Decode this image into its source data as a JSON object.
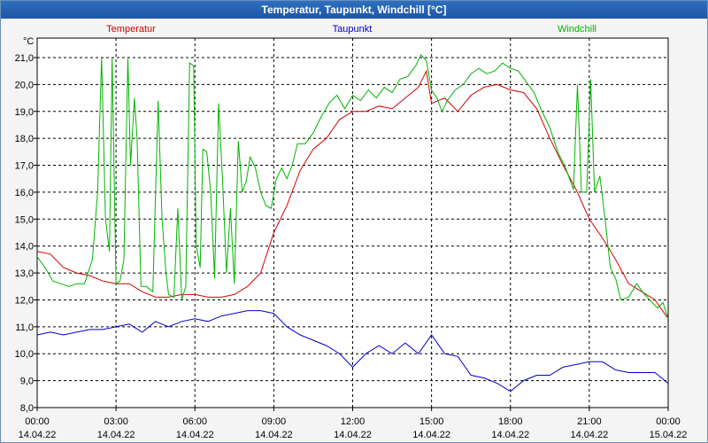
{
  "window": {
    "title": "Temperatur, Taupunkt, Windchill [°C]"
  },
  "chart_data": {
    "type": "line",
    "title": "Temperatur, Taupunkt, Windchill [°C]",
    "ylabel": "°C",
    "ylim": [
      8.0,
      21.5
    ],
    "yticks": [
      "21,0",
      "20,0",
      "19,0",
      "18,0",
      "17,0",
      "16,0",
      "15,0",
      "14,0",
      "13,0",
      "12,0",
      "11,0",
      "10,0",
      "9,0",
      "8,0"
    ],
    "ytick_values": [
      21,
      20,
      19,
      18,
      17,
      16,
      15,
      14,
      13,
      12,
      11,
      10,
      9,
      8
    ],
    "xlim": [
      0,
      24
    ],
    "xticks": [
      {
        "hour": 0,
        "time": "00:00",
        "date": "14.04.22"
      },
      {
        "hour": 3,
        "time": "03:00",
        "date": "14.04.22"
      },
      {
        "hour": 6,
        "time": "06:00",
        "date": "14.04.22"
      },
      {
        "hour": 9,
        "time": "09:00",
        "date": "14.04.22"
      },
      {
        "hour": 12,
        "time": "12:00",
        "date": "14.04.22"
      },
      {
        "hour": 15,
        "time": "15:00",
        "date": "14.04.22"
      },
      {
        "hour": 18,
        "time": "18:00",
        "date": "14.04.22"
      },
      {
        "hour": 21,
        "time": "21:00",
        "date": "14.04.22"
      },
      {
        "hour": 24,
        "time": "00:00",
        "date": "15.04.22"
      }
    ],
    "series": [
      {
        "name": "Temperatur",
        "color": "#d40000",
        "legend_pos": "left",
        "points": [
          [
            0,
            13.8
          ],
          [
            0.5,
            13.7
          ],
          [
            1,
            13.2
          ],
          [
            1.5,
            13.0
          ],
          [
            2,
            12.9
          ],
          [
            2.5,
            12.7
          ],
          [
            3,
            12.6
          ],
          [
            3.5,
            12.6
          ],
          [
            4,
            12.3
          ],
          [
            4.5,
            12.1
          ],
          [
            5,
            12.1
          ],
          [
            5.5,
            12.2
          ],
          [
            6,
            12.2
          ],
          [
            6.5,
            12.1
          ],
          [
            7,
            12.1
          ],
          [
            7.5,
            12.2
          ],
          [
            8,
            12.5
          ],
          [
            8.5,
            13.0
          ],
          [
            9,
            14.5
          ],
          [
            9.5,
            15.5
          ],
          [
            10,
            16.8
          ],
          [
            10.5,
            17.6
          ],
          [
            11,
            18.0
          ],
          [
            11.5,
            18.7
          ],
          [
            12,
            19.0
          ],
          [
            12.5,
            19.0
          ],
          [
            13,
            19.2
          ],
          [
            13.5,
            19.1
          ],
          [
            14,
            19.5
          ],
          [
            14.5,
            19.9
          ],
          [
            14.8,
            20.5
          ],
          [
            15,
            19.3
          ],
          [
            15.5,
            19.5
          ],
          [
            16,
            19.0
          ],
          [
            16.5,
            19.6
          ],
          [
            17,
            19.9
          ],
          [
            17.5,
            20.0
          ],
          [
            18,
            19.8
          ],
          [
            18.5,
            19.7
          ],
          [
            19,
            19.1
          ],
          [
            19.5,
            18.0
          ],
          [
            20,
            17.0
          ],
          [
            20.5,
            16.1
          ],
          [
            21,
            15.0
          ],
          [
            21.5,
            14.3
          ],
          [
            22,
            13.5
          ],
          [
            22.5,
            12.6
          ],
          [
            23,
            12.3
          ],
          [
            23.5,
            12.0
          ],
          [
            24,
            11.3
          ]
        ]
      },
      {
        "name": "Taupunkt",
        "color": "#0000c8",
        "legend_pos": "center",
        "points": [
          [
            0,
            10.7
          ],
          [
            0.5,
            10.8
          ],
          [
            1,
            10.7
          ],
          [
            1.5,
            10.8
          ],
          [
            2,
            10.9
          ],
          [
            2.5,
            10.9
          ],
          [
            3,
            11.0
          ],
          [
            3.5,
            11.1
          ],
          [
            4,
            10.8
          ],
          [
            4.5,
            11.2
          ],
          [
            5,
            11.0
          ],
          [
            5.5,
            11.2
          ],
          [
            6,
            11.3
          ],
          [
            6.5,
            11.2
          ],
          [
            7,
            11.4
          ],
          [
            7.5,
            11.5
          ],
          [
            8,
            11.6
          ],
          [
            8.5,
            11.6
          ],
          [
            9,
            11.5
          ],
          [
            9.5,
            11.0
          ],
          [
            10,
            10.7
          ],
          [
            10.5,
            10.5
          ],
          [
            11,
            10.3
          ],
          [
            11.5,
            10.0
          ],
          [
            12,
            9.5
          ],
          [
            12.5,
            10.0
          ],
          [
            13,
            10.3
          ],
          [
            13.5,
            10.0
          ],
          [
            14,
            10.4
          ],
          [
            14.5,
            10.0
          ],
          [
            15,
            10.7
          ],
          [
            15.5,
            10.0
          ],
          [
            16,
            9.9
          ],
          [
            16.5,
            9.2
          ],
          [
            17,
            9.1
          ],
          [
            17.5,
            8.9
          ],
          [
            18,
            8.6
          ],
          [
            18.5,
            9.0
          ],
          [
            19,
            9.2
          ],
          [
            19.5,
            9.2
          ],
          [
            20,
            9.5
          ],
          [
            20.5,
            9.6
          ],
          [
            21,
            9.7
          ],
          [
            21.5,
            9.7
          ],
          [
            22,
            9.4
          ],
          [
            22.5,
            9.3
          ],
          [
            23,
            9.3
          ],
          [
            23.5,
            9.3
          ],
          [
            24,
            8.9
          ]
        ]
      },
      {
        "name": "Windchill",
        "color": "#00b400",
        "legend_pos": "right",
        "points": [
          [
            0,
            13.6
          ],
          [
            0.3,
            13.2
          ],
          [
            0.6,
            12.7
          ],
          [
            0.9,
            12.6
          ],
          [
            1.2,
            12.5
          ],
          [
            1.5,
            12.6
          ],
          [
            1.8,
            12.6
          ],
          [
            2.1,
            13.5
          ],
          [
            2.3,
            16.0
          ],
          [
            2.45,
            21.0
          ],
          [
            2.6,
            15.0
          ],
          [
            2.75,
            13.8
          ],
          [
            2.85,
            21.0
          ],
          [
            3.0,
            12.6
          ],
          [
            3.15,
            12.7
          ],
          [
            3.3,
            13.5
          ],
          [
            3.45,
            21.0
          ],
          [
            3.55,
            17.0
          ],
          [
            3.7,
            19.5
          ],
          [
            3.8,
            18.0
          ],
          [
            3.95,
            12.5
          ],
          [
            4.15,
            12.5
          ],
          [
            4.4,
            12.3
          ],
          [
            4.6,
            19.4
          ],
          [
            4.75,
            15.0
          ],
          [
            4.9,
            13.0
          ],
          [
            5.0,
            12.2
          ],
          [
            5.2,
            12.1
          ],
          [
            5.35,
            15.4
          ],
          [
            5.5,
            12.0
          ],
          [
            5.65,
            12.5
          ],
          [
            5.8,
            20.8
          ],
          [
            5.95,
            20.7
          ],
          [
            6.05,
            14.0
          ],
          [
            6.2,
            13.2
          ],
          [
            6.3,
            17.6
          ],
          [
            6.45,
            17.5
          ],
          [
            6.6,
            16.0
          ],
          [
            6.75,
            12.8
          ],
          [
            6.9,
            19.3
          ],
          [
            7.05,
            16.5
          ],
          [
            7.2,
            13.0
          ],
          [
            7.35,
            15.4
          ],
          [
            7.5,
            12.6
          ],
          [
            7.65,
            17.9
          ],
          [
            7.8,
            16.0
          ],
          [
            7.95,
            16.4
          ],
          [
            8.1,
            17.3
          ],
          [
            8.3,
            16.9
          ],
          [
            8.5,
            16.0
          ],
          [
            8.7,
            15.5
          ],
          [
            8.9,
            15.4
          ],
          [
            9.1,
            16.5
          ],
          [
            9.3,
            16.9
          ],
          [
            9.5,
            16.5
          ],
          [
            9.7,
            17.0
          ],
          [
            9.9,
            17.8
          ],
          [
            10.2,
            17.8
          ],
          [
            10.5,
            18.2
          ],
          [
            10.8,
            18.8
          ],
          [
            11.1,
            19.3
          ],
          [
            11.4,
            19.6
          ],
          [
            11.7,
            19.1
          ],
          [
            12.0,
            19.6
          ],
          [
            12.3,
            19.4
          ],
          [
            12.6,
            19.8
          ],
          [
            12.9,
            19.5
          ],
          [
            13.2,
            19.9
          ],
          [
            13.5,
            19.7
          ],
          [
            13.8,
            20.2
          ],
          [
            14.1,
            20.3
          ],
          [
            14.4,
            20.7
          ],
          [
            14.6,
            21.1
          ],
          [
            14.8,
            20.9
          ],
          [
            15.0,
            19.8
          ],
          [
            15.2,
            19.5
          ],
          [
            15.4,
            19.0
          ],
          [
            15.6,
            19.4
          ],
          [
            15.9,
            19.8
          ],
          [
            16.2,
            20.0
          ],
          [
            16.5,
            20.4
          ],
          [
            16.8,
            20.6
          ],
          [
            17.1,
            20.4
          ],
          [
            17.4,
            20.5
          ],
          [
            17.7,
            20.8
          ],
          [
            18.0,
            20.6
          ],
          [
            18.3,
            20.5
          ],
          [
            18.6,
            20.1
          ],
          [
            18.9,
            19.7
          ],
          [
            19.2,
            19.0
          ],
          [
            19.5,
            18.4
          ],
          [
            19.8,
            17.5
          ],
          [
            20.1,
            16.9
          ],
          [
            20.4,
            16.1
          ],
          [
            20.55,
            20.0
          ],
          [
            20.7,
            16.0
          ],
          [
            20.9,
            16.0
          ],
          [
            21.05,
            20.2
          ],
          [
            21.2,
            16.0
          ],
          [
            21.4,
            16.6
          ],
          [
            21.6,
            15.0
          ],
          [
            21.8,
            13.2
          ],
          [
            22.0,
            12.8
          ],
          [
            22.2,
            12.0
          ],
          [
            22.5,
            12.1
          ],
          [
            22.8,
            12.6
          ],
          [
            23.1,
            12.2
          ],
          [
            23.4,
            11.9
          ],
          [
            23.6,
            11.7
          ],
          [
            23.8,
            11.9
          ],
          [
            24,
            11.3
          ]
        ]
      }
    ]
  }
}
